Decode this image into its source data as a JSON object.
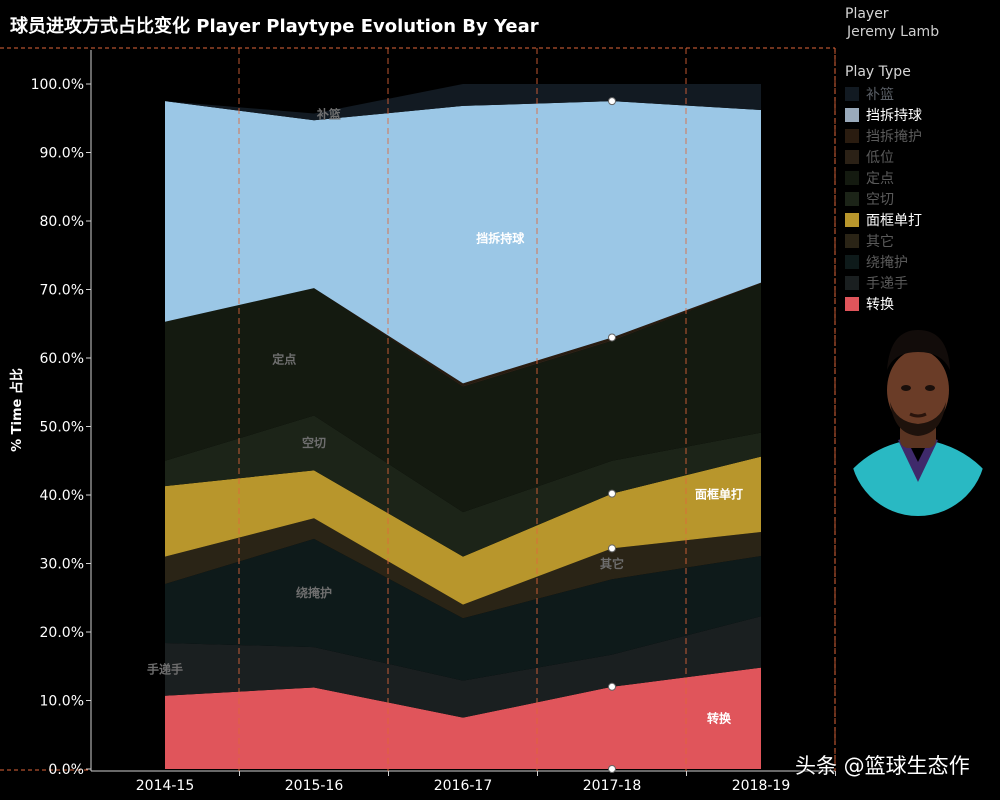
{
  "title": "球员进攻方式占比变化 Player Playtype Evolution By Year",
  "legend": {
    "player_label": "Player",
    "player_name": "Jeremy Lamb",
    "type_label": "Play Type",
    "items": [
      {
        "name": "补篮",
        "color": "#121a22",
        "text_color": "#5a5f66"
      },
      {
        "name": "挡拆持球",
        "color": "#9aaabb",
        "text_color": "#ffffff"
      },
      {
        "name": "挡拆掩护",
        "color": "#2a1c10",
        "text_color": "#5a5a5a"
      },
      {
        "name": "低位",
        "color": "#2b2116",
        "text_color": "#5a5a5a"
      },
      {
        "name": "定点",
        "color": "#141a10",
        "text_color": "#5a5a5a"
      },
      {
        "name": "空切",
        "color": "#1c2418",
        "text_color": "#5a5a5a"
      },
      {
        "name": "面框单打",
        "color": "#b8962c",
        "text_color": "#ffffff"
      },
      {
        "name": "其它",
        "color": "#2a2416",
        "text_color": "#5a5a5a"
      },
      {
        "name": "绕掩护",
        "color": "#0e1a1a",
        "text_color": "#5a5a5a"
      },
      {
        "name": "手递手",
        "color": "#1a1f20",
        "text_color": "#5a5a5a"
      },
      {
        "name": "转换",
        "color": "#e0555b",
        "text_color": "#ffffff"
      }
    ]
  },
  "watermark": "头条 @篮球生态",
  "watermark_tail": "作",
  "avatar_icon": "player-headshot-icon",
  "chart_data": {
    "type": "area",
    "stacked": true,
    "x": [
      "2014-15",
      "2015-16",
      "2016-17",
      "2017-18",
      "2018-19"
    ],
    "ylabel": "% Time 占比",
    "ylim": [
      0,
      1.05
    ],
    "yticks": [
      0,
      0.1,
      0.2,
      0.3,
      0.4,
      0.5,
      0.6,
      0.7,
      0.8,
      0.9,
      1.0
    ],
    "ytick_labels": [
      "0.0%",
      "10.0%",
      "20.0%",
      "30.0%",
      "40.0%",
      "50.0%",
      "60.0%",
      "70.0%",
      "80.0%",
      "90.0%",
      "100.0%"
    ],
    "reference_lines": "dashed orange vertical lines between seasons",
    "series": [
      {
        "name": "转换",
        "color": "#e0555b",
        "values": [
          0.107,
          0.119,
          0.075,
          0.12,
          0.148
        ],
        "label": "转换",
        "label_at": 4,
        "label_color": "#ffffff"
      },
      {
        "name": "手递手",
        "color": "#1a1f20",
        "values": [
          0.077,
          0.059,
          0.054,
          0.047,
          0.075
        ],
        "label": "手递手",
        "label_at": 0,
        "label_color": "#6e6e6e"
      },
      {
        "name": "绕掩护",
        "color": "#0e1a1a",
        "values": [
          0.086,
          0.158,
          0.091,
          0.11,
          0.088
        ],
        "label": "绕掩护",
        "label_at": 1,
        "label_color": "#6e6e6e"
      },
      {
        "name": "其它",
        "color": "#2a2416",
        "values": [
          0.04,
          0.03,
          0.02,
          0.045,
          0.035
        ],
        "label": "其它",
        "label_at": 3,
        "label_color": "#6e6e6e"
      },
      {
        "name": "面框单打",
        "color": "#b8962c",
        "values": [
          0.103,
          0.07,
          0.07,
          0.08,
          0.11
        ],
        "label": "面框单打",
        "label_at": 4,
        "label_color": "#ffffff"
      },
      {
        "name": "空切",
        "color": "#1c2418",
        "values": [
          0.037,
          0.08,
          0.065,
          0.048,
          0.035
        ],
        "label": "空切",
        "label_at": 1,
        "label_color": "#6e6e6e"
      },
      {
        "name": "定点",
        "color": "#141a10",
        "values": [
          0.203,
          0.186,
          0.183,
          0.175,
          0.218
        ],
        "label": "定点",
        "label_at": 0.8,
        "label_color": "#6e6e6e"
      },
      {
        "name": "低位",
        "color": "#2b2116",
        "values": [
          0.0,
          0.0,
          0.002,
          0.002,
          0.0
        ],
        "label": "",
        "label_at": 0,
        "label_color": "#6e6e6e"
      },
      {
        "name": "挡拆掩护",
        "color": "#2a1c10",
        "values": [
          0.0,
          0.0,
          0.003,
          0.003,
          0.001
        ],
        "label": "",
        "label_at": 0,
        "label_color": "#6e6e6e"
      },
      {
        "name": "挡拆持球",
        "color": "#9bc7e6",
        "values": [
          0.322,
          0.245,
          0.405,
          0.345,
          0.252
        ],
        "label": "挡拆持球",
        "label_at": 2.25,
        "label_color": "#ffffff"
      },
      {
        "name": "补篮",
        "color": "#121a22",
        "values": [
          0.0,
          0.01,
          0.032,
          0.025,
          0.038
        ],
        "label": "补篮",
        "label_at": 1.1,
        "label_color": "#6e6e6e"
      }
    ],
    "highlighted_points": [
      {
        "x": "2017-18",
        "y": 0.0
      },
      {
        "x": "2017-18",
        "y": 0.12
      },
      {
        "x": "2017-18",
        "y": 0.322
      },
      {
        "x": "2017-18",
        "y": 0.402
      },
      {
        "x": "2017-18",
        "y": 0.63
      },
      {
        "x": "2017-18",
        "y": 0.975
      }
    ]
  }
}
